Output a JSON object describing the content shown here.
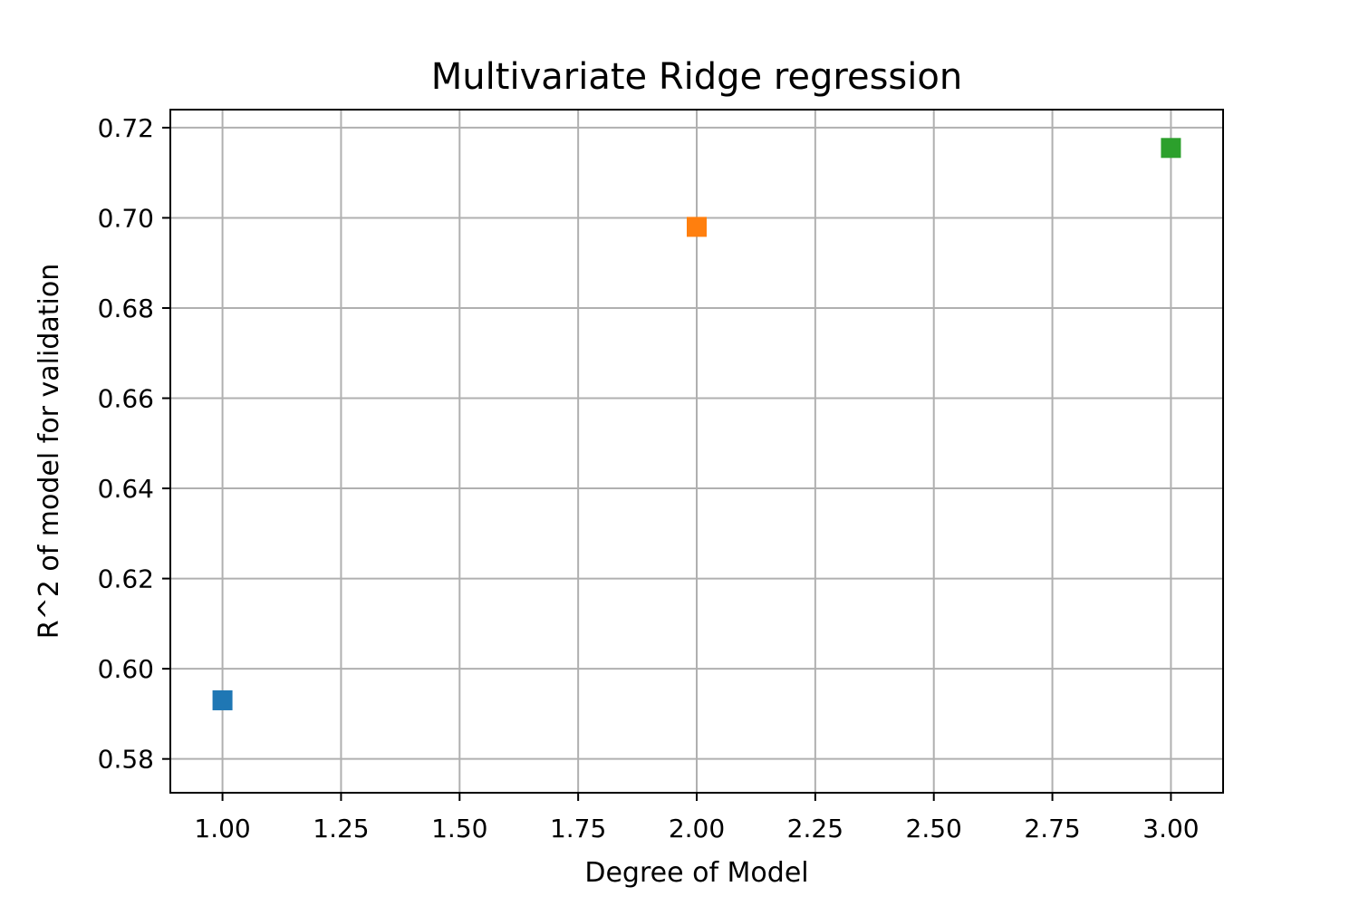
{
  "chart_data": {
    "type": "scatter",
    "title": "Multivariate Ridge regression",
    "xlabel": "Degree of Model",
    "ylabel": "R^2 of model for validation",
    "xlim": [
      0.89,
      3.11
    ],
    "ylim": [
      0.5725,
      0.724
    ],
    "grid": true,
    "x_ticks": [
      1.0,
      1.25,
      1.5,
      1.75,
      2.0,
      2.25,
      2.5,
      2.75,
      3.0
    ],
    "x_tick_labels": [
      "1.00",
      "1.25",
      "1.50",
      "1.75",
      "2.00",
      "2.25",
      "2.50",
      "2.75",
      "3.00"
    ],
    "y_ticks": [
      0.58,
      0.6,
      0.62,
      0.64,
      0.66,
      0.68,
      0.7,
      0.72
    ],
    "y_tick_labels": [
      "0.58",
      "0.60",
      "0.62",
      "0.64",
      "0.66",
      "0.68",
      "0.70",
      "0.72"
    ],
    "marker": "square",
    "points": [
      {
        "x": 1.0,
        "y": 0.593,
        "color": "#1f77b4"
      },
      {
        "x": 2.0,
        "y": 0.698,
        "color": "#ff7f0e"
      },
      {
        "x": 3.0,
        "y": 0.7155,
        "color": "#2ca02c"
      }
    ]
  }
}
